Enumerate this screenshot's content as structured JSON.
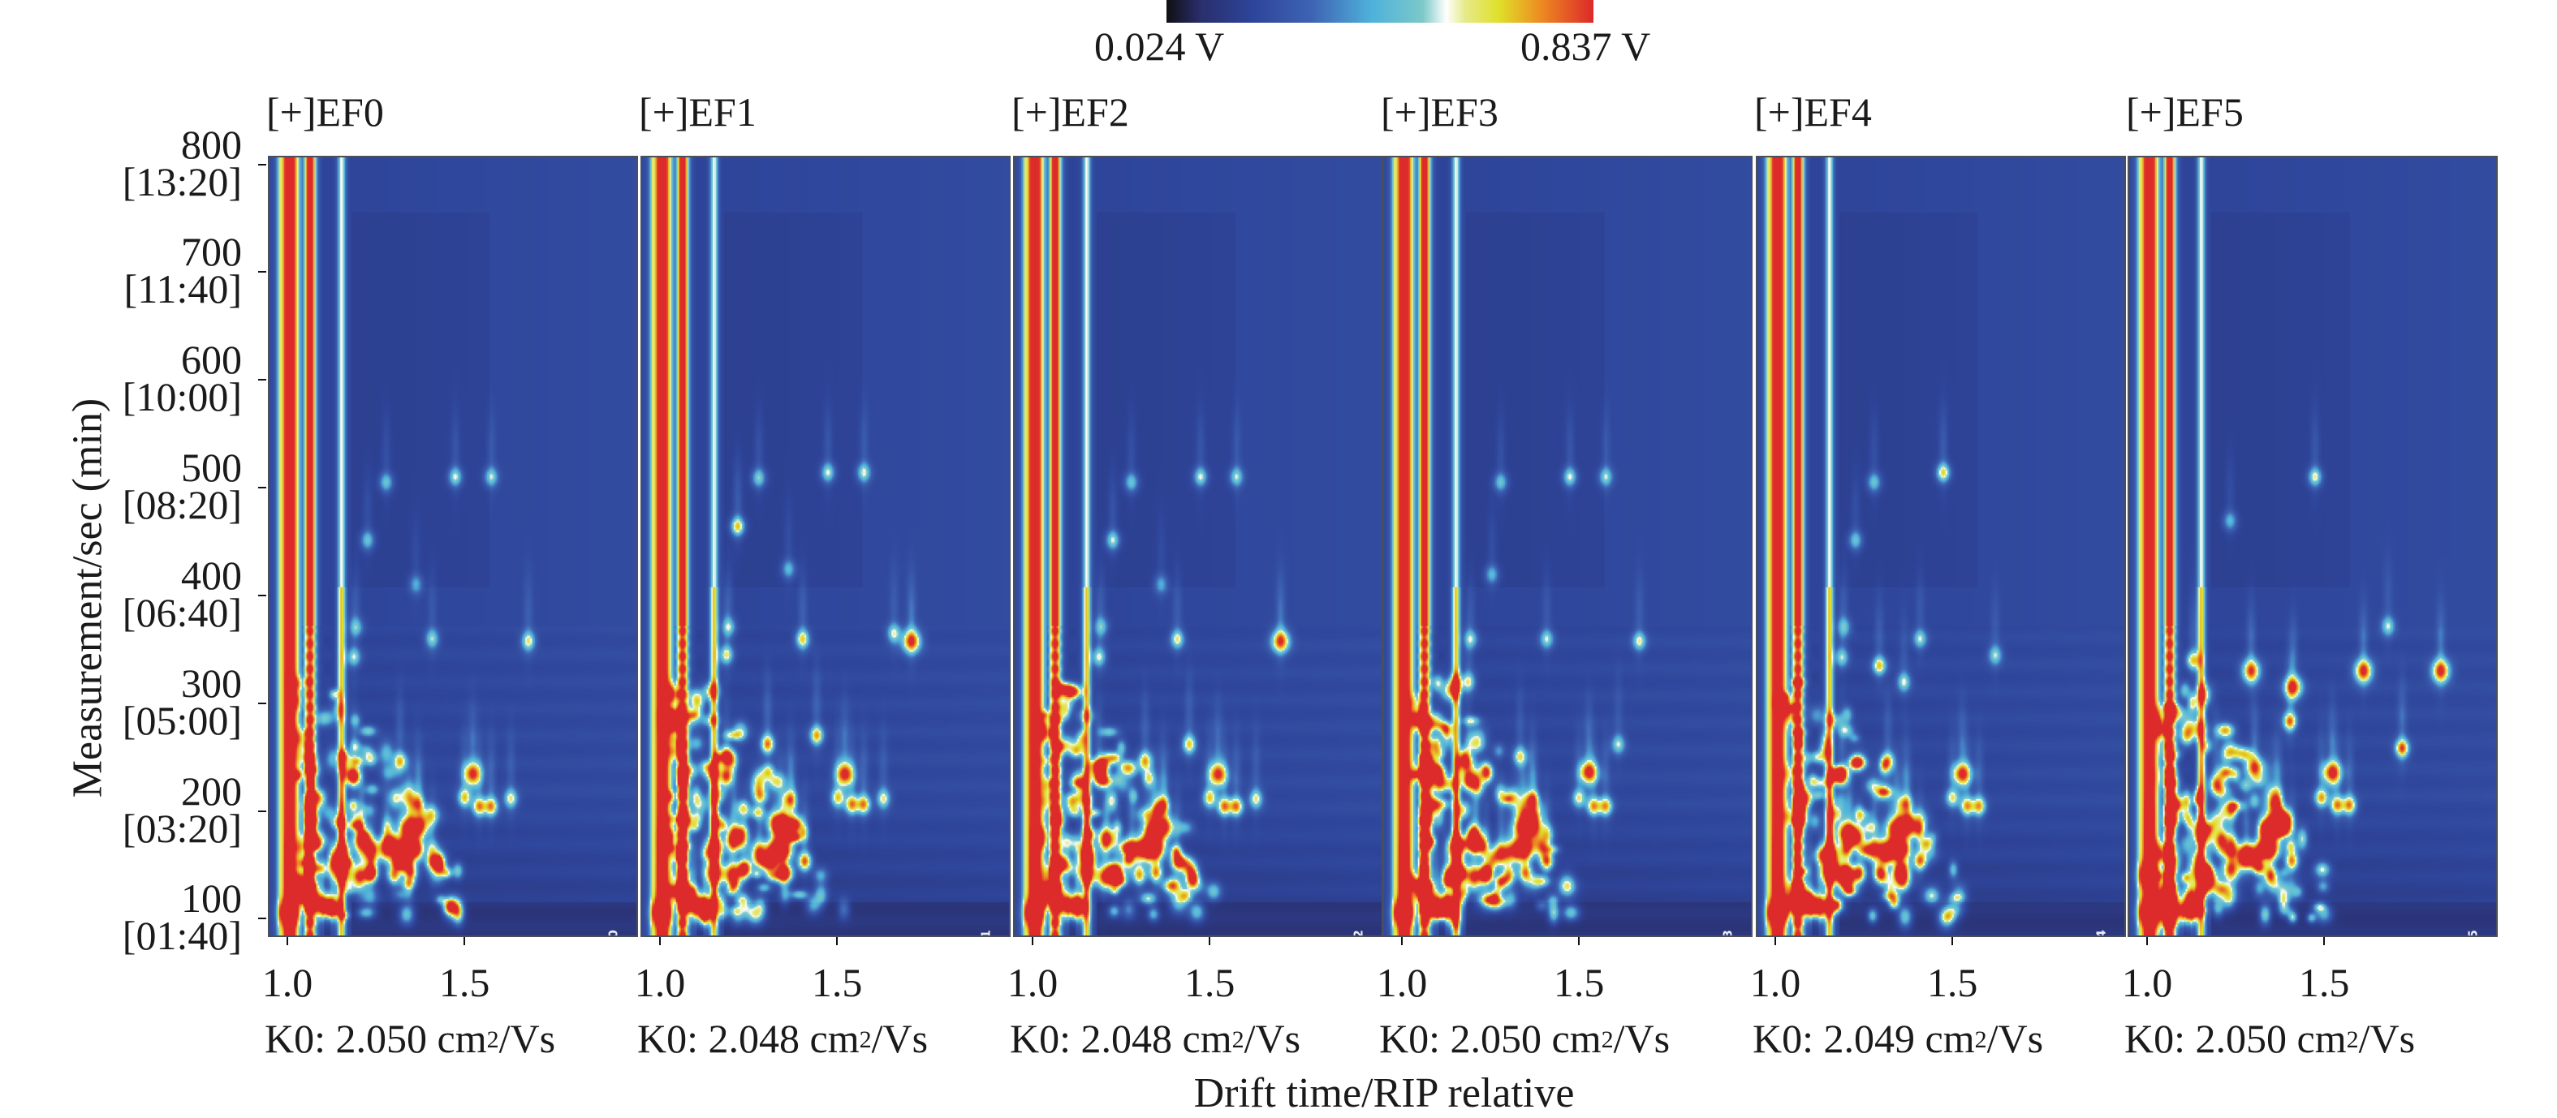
{
  "chart_data": {
    "type": "heatmap",
    "title": "",
    "xlabel": "Drift time/RIP relative",
    "ylabel": "Measurement/sec (min)",
    "xlim": [
      0.945,
      1.99
    ],
    "ylim": [
      83,
      808
    ],
    "x_ticks": [
      {
        "value": 1.0,
        "label": "1.0"
      },
      {
        "value": 1.5,
        "label": "1.5"
      }
    ],
    "y_ticks": [
      {
        "value": 800,
        "label": "800",
        "sublabel": "[13:20]"
      },
      {
        "value": 700,
        "label": "700",
        "sublabel": "[11:40]"
      },
      {
        "value": 600,
        "label": "600",
        "sublabel": "[10:00]"
      },
      {
        "value": 500,
        "label": "500",
        "sublabel": "[08:20]"
      },
      {
        "value": 400,
        "label": "400",
        "sublabel": "[06:40]"
      },
      {
        "value": 300,
        "label": "300",
        "sublabel": "[05:00]"
      },
      {
        "value": 200,
        "label": "200",
        "sublabel": "[03:20]"
      },
      {
        "value": 100,
        "label": "100",
        "sublabel": "[01:40]"
      }
    ],
    "colorbar": {
      "min_label": "0.024 V",
      "max_label": "0.837 V",
      "min": 0.024,
      "max": 0.837,
      "stops": [
        "#111114",
        "#2a2f6e",
        "#2e459a",
        "#3f64b4",
        "#4fb2dc",
        "#7cc9c9",
        "#ffffff",
        "#e6eb8a",
        "#e0e02a",
        "#ee8a22",
        "#dd2a2a"
      ]
    },
    "reactant_ion_streaks": [
      {
        "drift": 0.975,
        "intensity": 0.55
      },
      {
        "drift": 1.0,
        "intensity": 1.0
      },
      {
        "drift": 1.058,
        "intensity": 0.95
      },
      {
        "drift": 1.148,
        "intensity": 0.62
      }
    ],
    "panels": [
      {
        "title": "[+]EF0",
        "tag": "[+] EF0",
        "k0_prefix": "K0: 2.050 cm",
        "k0_suffix": "/Vs",
        "k0_exp": "2",
        "peaks": [
          [
            1.472,
            511,
            0.55
          ],
          [
            1.574,
            511,
            0.5
          ],
          [
            1.275,
            506,
            0.45
          ],
          [
            1.222,
            452,
            0.45
          ],
          [
            1.36,
            411,
            0.35
          ],
          [
            1.406,
            360,
            0.5
          ],
          [
            1.68,
            358,
            0.62
          ],
          [
            1.19,
            371,
            0.4
          ],
          [
            1.183,
            343,
            0.5
          ],
          [
            1.521,
            234,
            0.95
          ],
          [
            1.498,
            212,
            0.7
          ],
          [
            1.54,
            204,
            0.8
          ],
          [
            1.574,
            204,
            0.8
          ],
          [
            1.63,
            211,
            0.6
          ],
          [
            1.364,
            206,
            0.7
          ],
          [
            1.314,
            246,
            0.7
          ],
          [
            1.183,
            232,
            0.85
          ],
          [
            1.337,
            183,
            0.95
          ],
          [
            1.371,
            185,
            0.95
          ],
          [
            1.206,
            173,
            1.0
          ],
          [
            1.276,
            164,
            1.0
          ],
          [
            1.32,
            163,
            0.95
          ],
          [
            1.348,
            165,
            0.95
          ],
          [
            1.406,
            153,
            0.85
          ],
          [
            1.149,
            142,
            1.0
          ],
          [
            1.199,
            138,
            0.95
          ],
          [
            1.233,
            142,
            0.9
          ],
          [
            1.298,
            140,
            0.8
          ],
          [
            1.345,
            142,
            0.8
          ],
          [
            1.122,
            110,
            1.0
          ],
          [
            1.091,
            112,
            0.95
          ],
          [
            0.999,
            105,
            1.0
          ],
          [
            1.053,
            125,
            1.0
          ],
          [
            1.064,
            192,
            0.85
          ],
          [
            1.149,
            160,
            1.0
          ]
        ]
      },
      {
        "title": "[+]EF1",
        "tag": "[+] EF1",
        "k0_prefix": "K0: 2.048 cm",
        "k0_suffix": "/Vs",
        "k0_exp": "2",
        "peaks": [
          [
            1.472,
            515,
            0.55
          ],
          [
            1.574,
            515,
            0.55
          ],
          [
            1.275,
            510,
            0.5
          ],
          [
            1.215,
            465,
            0.75
          ],
          [
            1.36,
            425,
            0.4
          ],
          [
            1.4,
            360,
            0.7
          ],
          [
            1.71,
            358,
            1.0
          ],
          [
            1.66,
            365,
            0.55
          ],
          [
            1.19,
            371,
            0.45
          ],
          [
            1.183,
            345,
            0.6
          ],
          [
            1.52,
            234,
            1.0
          ],
          [
            1.5,
            212,
            0.7
          ],
          [
            1.54,
            206,
            0.8
          ],
          [
            1.574,
            206,
            0.8
          ],
          [
            1.63,
            211,
            0.6
          ],
          [
            1.364,
            210,
            0.75
          ],
          [
            1.3,
            262,
            0.85
          ],
          [
            1.183,
            232,
            0.9
          ],
          [
            1.337,
            185,
            1.0
          ],
          [
            1.371,
            185,
            1.0
          ],
          [
            1.206,
            173,
            1.0
          ],
          [
            1.276,
            160,
            1.0
          ],
          [
            1.32,
            163,
            1.0
          ],
          [
            1.348,
            163,
            0.95
          ],
          [
            1.406,
            153,
            0.9
          ],
          [
            1.149,
            142,
            1.0
          ],
          [
            1.199,
            140,
            1.0
          ],
          [
            1.233,
            145,
            0.9
          ],
          [
            1.345,
            142,
            0.85
          ],
          [
            1.122,
            110,
            1.0
          ],
          [
            1.091,
            112,
            0.95
          ],
          [
            0.999,
            105,
            1.0
          ],
          [
            1.053,
            125,
            1.0
          ],
          [
            1.064,
            192,
            0.85
          ],
          [
            1.149,
            165,
            1.0
          ],
          [
            1.44,
            270,
            0.75
          ]
        ]
      },
      {
        "title": "[+]EF2",
        "tag": "[+] EF2",
        "k0_prefix": "K0: 2.048 cm",
        "k0_suffix": "/Vs",
        "k0_exp": "2",
        "peaks": [
          [
            1.472,
            511,
            0.55
          ],
          [
            1.574,
            511,
            0.5
          ],
          [
            1.275,
            506,
            0.45
          ],
          [
            1.222,
            452,
            0.55
          ],
          [
            1.36,
            411,
            0.35
          ],
          [
            1.406,
            360,
            0.6
          ],
          [
            1.7,
            358,
            0.95
          ],
          [
            1.19,
            371,
            0.4
          ],
          [
            1.183,
            343,
            0.55
          ],
          [
            1.521,
            234,
            0.95
          ],
          [
            1.498,
            212,
            0.7
          ],
          [
            1.54,
            204,
            0.8
          ],
          [
            1.574,
            204,
            0.8
          ],
          [
            1.63,
            211,
            0.6
          ],
          [
            1.364,
            206,
            0.75
          ],
          [
            1.314,
            246,
            0.75
          ],
          [
            1.183,
            232,
            0.85
          ],
          [
            1.337,
            183,
            0.95
          ],
          [
            1.371,
            185,
            0.95
          ],
          [
            1.206,
            173,
            1.0
          ],
          [
            1.276,
            164,
            1.0
          ],
          [
            1.32,
            163,
            0.95
          ],
          [
            1.348,
            165,
            0.95
          ],
          [
            1.406,
            153,
            0.85
          ],
          [
            1.149,
            142,
            1.0
          ],
          [
            1.199,
            138,
            0.95
          ],
          [
            1.233,
            142,
            0.9
          ],
          [
            1.298,
            140,
            0.8
          ],
          [
            1.345,
            142,
            0.8
          ],
          [
            1.122,
            110,
            1.0
          ],
          [
            1.091,
            112,
            0.95
          ],
          [
            0.999,
            105,
            1.0
          ],
          [
            1.053,
            125,
            1.0
          ],
          [
            1.064,
            192,
            0.85
          ],
          [
            1.149,
            160,
            1.0
          ],
          [
            1.44,
            262,
            0.7
          ]
        ]
      },
      {
        "title": "[+]EF3",
        "tag": "[+] EF3",
        "k0_prefix": "K0: 2.050 cm",
        "k0_suffix": "/Vs",
        "k0_exp": "2",
        "peaks": [
          [
            1.472,
            511,
            0.55
          ],
          [
            1.574,
            511,
            0.5
          ],
          [
            1.275,
            506,
            0.45
          ],
          [
            1.25,
            420,
            0.4
          ],
          [
            1.406,
            360,
            0.5
          ],
          [
            1.67,
            358,
            0.55
          ],
          [
            1.19,
            360,
            0.45
          ],
          [
            1.183,
            320,
            0.6
          ],
          [
            1.525,
            236,
            1.0
          ],
          [
            1.498,
            212,
            0.6
          ],
          [
            1.54,
            204,
            0.75
          ],
          [
            1.574,
            204,
            0.75
          ],
          [
            1.61,
            262,
            0.5
          ],
          [
            1.364,
            210,
            0.85
          ],
          [
            1.33,
            250,
            0.6
          ],
          [
            1.183,
            228,
            0.9
          ],
          [
            1.337,
            185,
            0.95
          ],
          [
            1.371,
            185,
            0.95
          ],
          [
            1.206,
            172,
            1.0
          ],
          [
            1.276,
            160,
            1.0
          ],
          [
            1.32,
            163,
            0.95
          ],
          [
            1.348,
            165,
            0.95
          ],
          [
            1.406,
            153,
            0.9
          ],
          [
            1.149,
            142,
            1.0
          ],
          [
            1.199,
            138,
            0.95
          ],
          [
            1.233,
            142,
            0.9
          ],
          [
            1.298,
            140,
            0.8
          ],
          [
            1.345,
            142,
            0.8
          ],
          [
            1.122,
            110,
            1.0
          ],
          [
            1.091,
            112,
            0.95
          ],
          [
            0.999,
            105,
            1.0
          ],
          [
            1.053,
            125,
            1.0
          ],
          [
            1.064,
            192,
            0.85
          ],
          [
            1.149,
            165,
            1.0
          ],
          [
            1.1,
            225,
            0.7
          ]
        ]
      },
      {
        "title": "[+]EF4",
        "tag": "[+] EF4",
        "k0_prefix": "K0: 2.049 cm",
        "k0_suffix": "/Vs",
        "k0_exp": "2",
        "peaks": [
          [
            1.472,
            515,
            0.7
          ],
          [
            1.275,
            506,
            0.45
          ],
          [
            1.222,
            452,
            0.45
          ],
          [
            1.29,
            335,
            0.7
          ],
          [
            1.36,
            320,
            0.55
          ],
          [
            1.406,
            360,
            0.5
          ],
          [
            1.62,
            345,
            0.5
          ],
          [
            1.19,
            371,
            0.4
          ],
          [
            1.183,
            343,
            0.5
          ],
          [
            1.525,
            234,
            0.95
          ],
          [
            1.498,
            212,
            0.6
          ],
          [
            1.54,
            204,
            0.75
          ],
          [
            1.574,
            204,
            0.75
          ],
          [
            1.364,
            206,
            0.7
          ],
          [
            1.314,
            246,
            0.7
          ],
          [
            1.183,
            232,
            0.85
          ],
          [
            1.337,
            183,
            0.95
          ],
          [
            1.371,
            185,
            0.95
          ],
          [
            1.206,
            173,
            1.0
          ],
          [
            1.276,
            164,
            1.0
          ],
          [
            1.32,
            163,
            0.95
          ],
          [
            1.348,
            165,
            0.95
          ],
          [
            1.406,
            153,
            0.85
          ],
          [
            1.149,
            142,
            1.0
          ],
          [
            1.199,
            138,
            0.95
          ],
          [
            1.233,
            142,
            0.9
          ],
          [
            1.298,
            140,
            0.8
          ],
          [
            1.345,
            142,
            0.8
          ],
          [
            1.122,
            110,
            1.0
          ],
          [
            1.091,
            112,
            0.95
          ],
          [
            0.999,
            105,
            1.0
          ],
          [
            1.053,
            125,
            1.0
          ],
          [
            1.064,
            192,
            0.85
          ],
          [
            1.149,
            160,
            1.0
          ]
        ]
      },
      {
        "title": "[+]EF5",
        "tag": "[+] EF5",
        "k0_prefix": "K0: 2.050 cm",
        "k0_suffix": "/Vs",
        "k0_exp": "2",
        "peaks": [
          [
            1.472,
            511,
            0.6
          ],
          [
            1.23,
            470,
            0.4
          ],
          [
            1.29,
            330,
            0.95
          ],
          [
            1.41,
            315,
            0.95
          ],
          [
            1.61,
            330,
            1.0
          ],
          [
            1.83,
            330,
            1.0
          ],
          [
            1.68,
            372,
            0.5
          ],
          [
            1.125,
            340,
            0.7
          ],
          [
            1.52,
            235,
            1.0
          ],
          [
            1.4,
            283,
            0.85
          ],
          [
            1.72,
            258,
            0.9
          ],
          [
            1.49,
            212,
            0.75
          ],
          [
            1.535,
            205,
            0.8
          ],
          [
            1.57,
            205,
            0.8
          ],
          [
            1.36,
            207,
            0.85
          ],
          [
            1.3,
            240,
            0.95
          ],
          [
            1.19,
            225,
            0.8
          ],
          [
            1.337,
            183,
            0.95
          ],
          [
            1.37,
            190,
            1.0
          ],
          [
            1.206,
            172,
            1.0
          ],
          [
            1.276,
            160,
            1.0
          ],
          [
            1.32,
            163,
            0.95
          ],
          [
            1.348,
            165,
            0.95
          ],
          [
            1.406,
            153,
            0.85
          ],
          [
            1.149,
            142,
            1.0
          ],
          [
            1.17,
            135,
            1.0
          ],
          [
            1.233,
            145,
            0.95
          ],
          [
            1.345,
            140,
            0.85
          ],
          [
            1.122,
            118,
            1.0
          ],
          [
            1.11,
            105,
            1.0
          ],
          [
            0.999,
            105,
            1.0
          ],
          [
            1.053,
            125,
            1.0
          ],
          [
            1.064,
            192,
            0.9
          ],
          [
            1.149,
            180,
            1.0
          ],
          [
            1.0,
            140,
            1.0
          ],
          [
            1.053,
            100,
            1.0
          ]
        ]
      }
    ]
  }
}
